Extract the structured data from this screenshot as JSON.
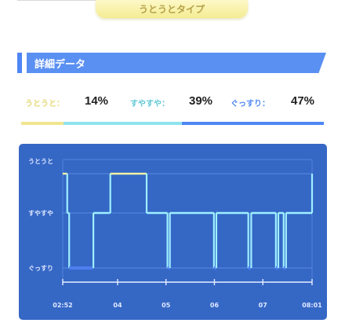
{
  "type_badge": {
    "label": "うとうとタイプ"
  },
  "section": {
    "title": "詳細データ"
  },
  "stats": [
    {
      "label": "うとうと：",
      "value": "14%",
      "color": "#e6d873"
    },
    {
      "label": "すやすや：",
      "value": "39%",
      "color": "#5ec7d5"
    },
    {
      "label": "ぐっすり：",
      "value": "47%",
      "color": "#4e86f5"
    }
  ],
  "ratio_bar": [
    {
      "fraction": 0.14,
      "color": "#f0e690"
    },
    {
      "fraction": 0.39,
      "color": "#8fe3ee"
    },
    {
      "fraction": 0.47,
      "color": "#4e86f5"
    }
  ],
  "colors": {
    "card_bg": "#3567c5",
    "line_light": "#f3f3a6",
    "line_mid": "#9ef0ff",
    "line_deep": "#4e7ff0"
  },
  "chart_data": {
    "type": "line",
    "levels": [
      "うとうと",
      "すやすや",
      "ぐっすり"
    ],
    "x_tick_labels": [
      "02:52",
      "04",
      "05",
      "06",
      "07",
      "08:01"
    ],
    "x_tick_hours": [
      2.867,
      4,
      5,
      6,
      7,
      8.017
    ],
    "xlim": [
      2.867,
      8.017
    ],
    "series": [
      {
        "x": [
          2.867,
          2.96,
          3.0,
          3.48,
          3.5,
          3.82,
          3.85,
          4.55,
          4.6,
          5.03,
          5.08,
          5.99,
          6.04,
          6.7,
          6.76,
          7.27,
          7.32,
          7.43,
          7.48,
          8.017
        ],
        "y": [
          "うとうと",
          "すやすや",
          "ぐっすり",
          "ぐっすり",
          "すやすや",
          "すやすや",
          "うとうと",
          "うとうと",
          "すやすや",
          "ぐっすり",
          "すやすや",
          "ぐっすり",
          "すやすや",
          "ぐっすり",
          "すやすや",
          "ぐっすり",
          "すやすや",
          "ぐっすり",
          "すやすや",
          "うとうと"
        ]
      }
    ]
  }
}
